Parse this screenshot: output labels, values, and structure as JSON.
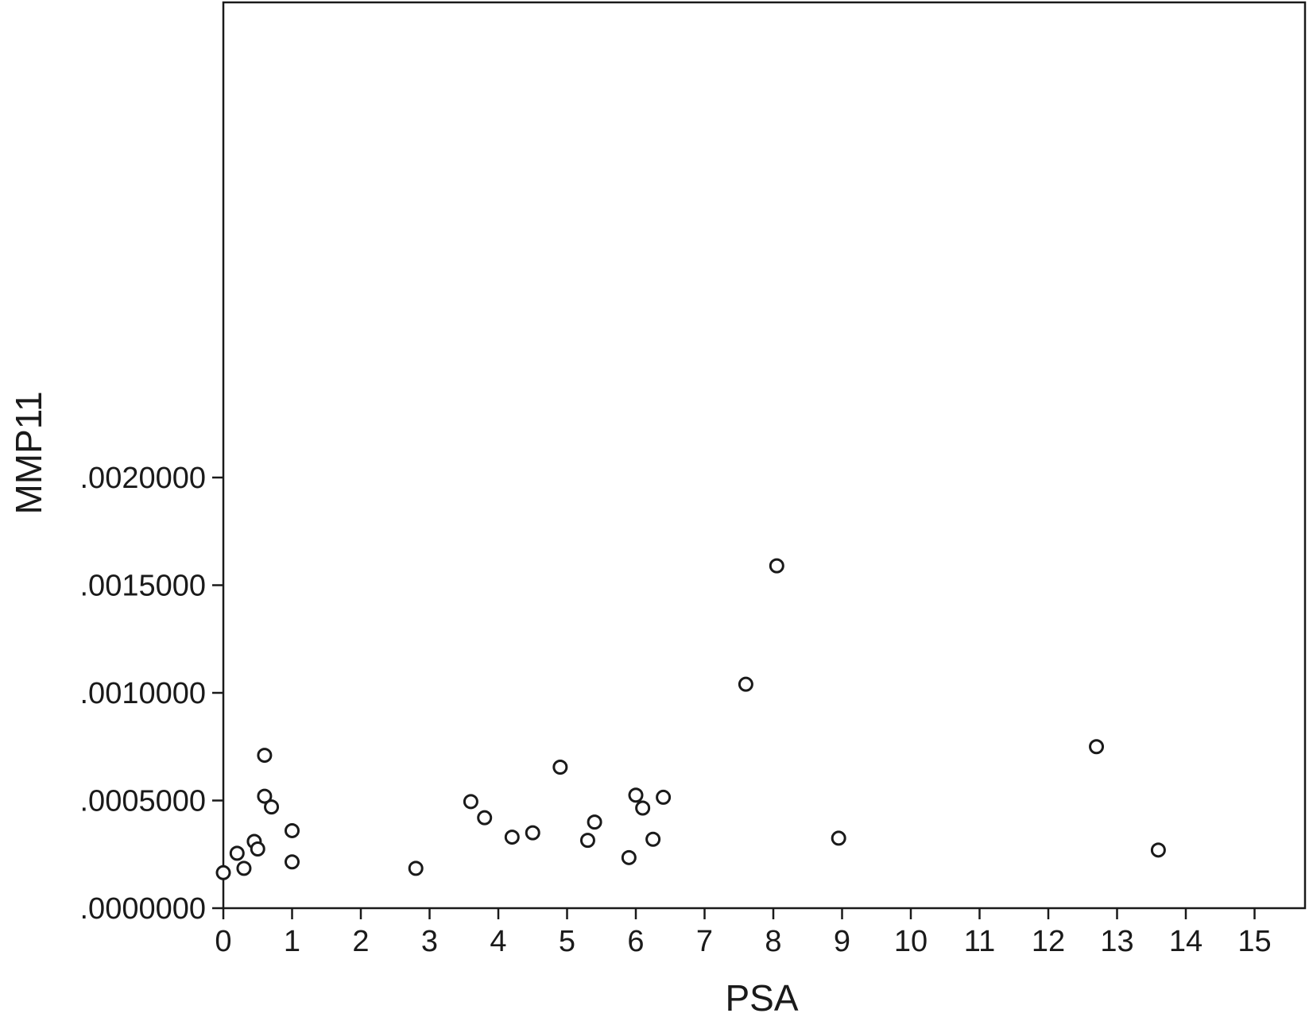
{
  "chart_data": {
    "type": "scatter",
    "title": "",
    "xlabel": "PSA",
    "ylabel": "MMP11",
    "xlim": [
      0,
      15.8
    ],
    "ylim": [
      -1e-06,
      0.0021
    ],
    "x_ticks": [
      0,
      1,
      2,
      3,
      4,
      5,
      6,
      7,
      8,
      9,
      10,
      11,
      12,
      13,
      14,
      15
    ],
    "x_tick_labels": [
      "0",
      "1",
      "2",
      "3",
      "4",
      "5",
      "6",
      "7",
      "8",
      "9",
      "10",
      "11",
      "12",
      "13",
      "14",
      "15"
    ],
    "y_ticks": [
      0,
      0.0005,
      0.001,
      0.0015,
      0.002
    ],
    "y_tick_labels": [
      ".0000000",
      ".0005000",
      ".0010000",
      ".0015000",
      ".0020000"
    ],
    "grid": false,
    "marker": "open-circle",
    "series": [
      {
        "points": [
          {
            "x": 0.0,
            "y": 0.000165
          },
          {
            "x": 0.2,
            "y": 0.000255
          },
          {
            "x": 0.3,
            "y": 0.000185
          },
          {
            "x": 0.45,
            "y": 0.00031
          },
          {
            "x": 0.5,
            "y": 0.000275
          },
          {
            "x": 0.6,
            "y": 0.00071
          },
          {
            "x": 0.6,
            "y": 0.00052
          },
          {
            "x": 0.7,
            "y": 0.00047
          },
          {
            "x": 1.0,
            "y": 0.00036
          },
          {
            "x": 1.0,
            "y": 0.000215
          },
          {
            "x": 2.8,
            "y": 0.000185
          },
          {
            "x": 3.6,
            "y": 0.000495
          },
          {
            "x": 3.8,
            "y": 0.00042
          },
          {
            "x": 4.2,
            "y": 0.00033
          },
          {
            "x": 4.5,
            "y": 0.00035
          },
          {
            "x": 4.9,
            "y": 0.000655
          },
          {
            "x": 5.3,
            "y": 0.000315
          },
          {
            "x": 5.4,
            "y": 0.0004
          },
          {
            "x": 5.9,
            "y": 0.000235
          },
          {
            "x": 6.0,
            "y": 0.000525
          },
          {
            "x": 6.1,
            "y": 0.000465
          },
          {
            "x": 6.25,
            "y": 0.00032
          },
          {
            "x": 6.4,
            "y": 0.000515
          },
          {
            "x": 7.6,
            "y": 0.00104
          },
          {
            "x": 8.05,
            "y": 0.00159
          },
          {
            "x": 8.95,
            "y": 0.000325
          },
          {
            "x": 12.7,
            "y": 0.00075
          },
          {
            "x": 13.6,
            "y": 0.00027
          }
        ]
      }
    ]
  }
}
